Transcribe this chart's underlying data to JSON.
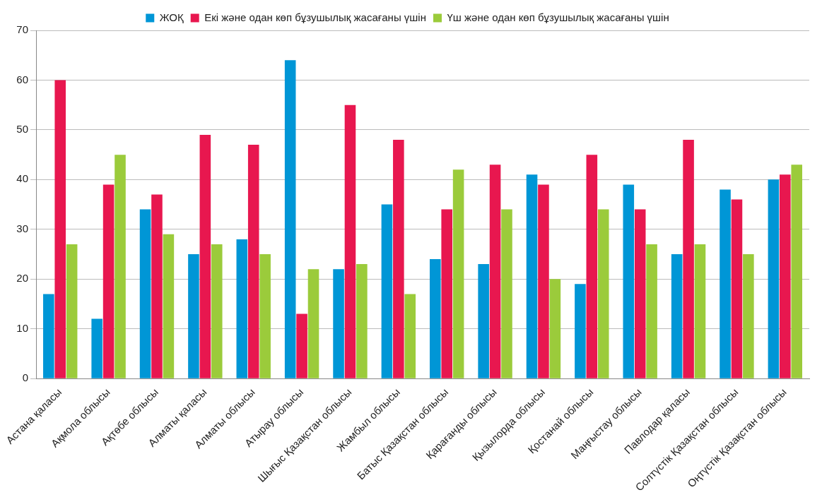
{
  "chart_data": {
    "type": "bar",
    "categories": [
      "Астана қаласы",
      "Ақмола облысы",
      "Ақтөбе облысы",
      "Алматы қаласы",
      "Алматы облысы",
      "Атырау облысы",
      "Шығыс Қазақстан облысы",
      "Жамбыл облысы",
      "Батыс Қазақстан облысы",
      "Қарағанды облысы",
      "Қызылорда облысы",
      "Қостанай облысы",
      "Маңғыстау облысы",
      "Павлодар қаласы",
      "Солтүстік Қазақстан облысы",
      "Оңтүстік Қазақстан облысы"
    ],
    "series": [
      {
        "name": "ЖОҚ",
        "color": "#0096d6",
        "values": [
          17,
          12,
          34,
          25,
          28,
          64,
          22,
          35,
          24,
          23,
          41,
          19,
          39,
          25,
          38,
          40
        ]
      },
      {
        "name": "Екі және одан көп бұзушылық жасағаны үшін",
        "color": "#e8174f",
        "values": [
          60,
          39,
          37,
          49,
          47,
          13,
          55,
          48,
          34,
          43,
          39,
          45,
          34,
          48,
          36,
          41
        ]
      },
      {
        "name": "Үш және одан көп бұзушылық жасағаны үшін",
        "color": "#9bcb3b",
        "values": [
          27,
          45,
          29,
          27,
          25,
          22,
          23,
          17,
          42,
          34,
          20,
          34,
          27,
          27,
          25,
          43
        ]
      }
    ],
    "ylim": [
      0,
      70
    ],
    "yticks": [
      0,
      10,
      20,
      30,
      40,
      50,
      60,
      70
    ],
    "grid": "y",
    "legend": "top"
  }
}
